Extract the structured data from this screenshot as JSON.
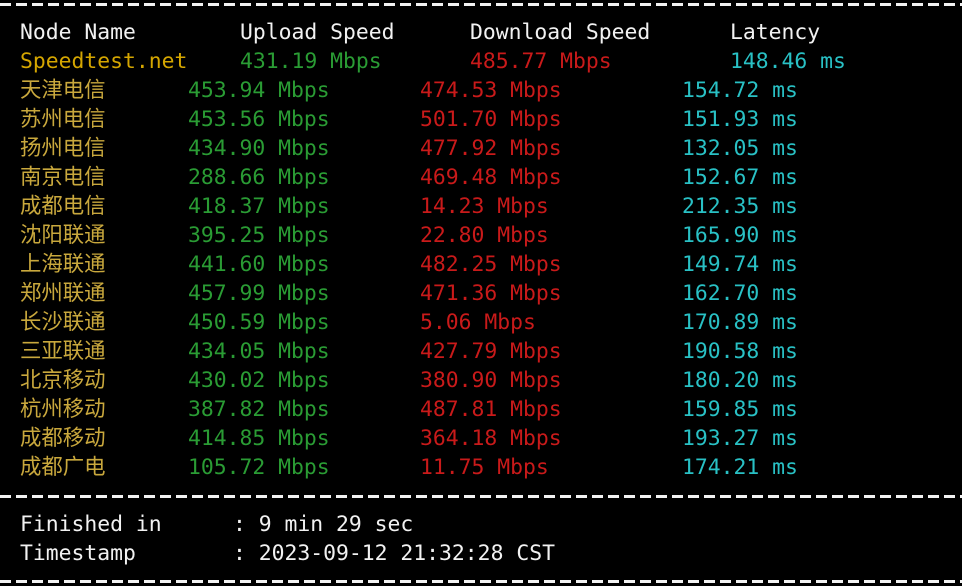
{
  "colors": {
    "background": "#000000",
    "foreground": "#f2f2f2",
    "node_latin": "#d5a600",
    "node_cjk": "#c9a83d",
    "upload": "#2a9c34",
    "download": "#c91a1a",
    "latency": "#29c1c5"
  },
  "table": {
    "headers": {
      "node": "Node Name",
      "upload": "Upload Speed",
      "download": "Download Speed",
      "latency": "Latency"
    },
    "rows": [
      {
        "node": "Speedtest.net",
        "upload": "431.19 Mbps",
        "download": "485.77 Mbps",
        "latency": "148.46 ms"
      },
      {
        "node": "天津电信",
        "upload": "453.94 Mbps",
        "download": "474.53 Mbps",
        "latency": "154.72 ms"
      },
      {
        "node": "苏州电信",
        "upload": "453.56 Mbps",
        "download": "501.70 Mbps",
        "latency": "151.93 ms"
      },
      {
        "node": "扬州电信",
        "upload": "434.90 Mbps",
        "download": "477.92 Mbps",
        "latency": "132.05 ms"
      },
      {
        "node": "南京电信",
        "upload": "288.66 Mbps",
        "download": "469.48 Mbps",
        "latency": "152.67 ms"
      },
      {
        "node": "成都电信",
        "upload": "418.37 Mbps",
        "download": "14.23 Mbps",
        "latency": "212.35 ms"
      },
      {
        "node": "沈阳联通",
        "upload": "395.25 Mbps",
        "download": "22.80 Mbps",
        "latency": "165.90 ms"
      },
      {
        "node": "上海联通",
        "upload": "441.60 Mbps",
        "download": "482.25 Mbps",
        "latency": "149.74 ms"
      },
      {
        "node": "郑州联通",
        "upload": "457.99 Mbps",
        "download": "471.36 Mbps",
        "latency": "162.70 ms"
      },
      {
        "node": "长沙联通",
        "upload": "450.59 Mbps",
        "download": "5.06 Mbps",
        "latency": "170.89 ms"
      },
      {
        "node": "三亚联通",
        "upload": "434.05 Mbps",
        "download": "427.79 Mbps",
        "latency": "190.58 ms"
      },
      {
        "node": "北京移动",
        "upload": "430.02 Mbps",
        "download": "380.90 Mbps",
        "latency": "180.20 ms"
      },
      {
        "node": "杭州移动",
        "upload": "387.82 Mbps",
        "download": "487.81 Mbps",
        "latency": "159.85 ms"
      },
      {
        "node": "成都移动",
        "upload": "414.85 Mbps",
        "download": "364.18 Mbps",
        "latency": "193.27 ms"
      },
      {
        "node": "成都广电",
        "upload": "105.72 Mbps",
        "download": "11.75 Mbps",
        "latency": "174.21 ms"
      }
    ]
  },
  "summary": {
    "finished_label": "Finished in",
    "finished_value": ": 9 min 29 sec",
    "timestamp_label": "Timestamp",
    "timestamp_value": ": 2023-09-12 21:32:28 CST"
  }
}
